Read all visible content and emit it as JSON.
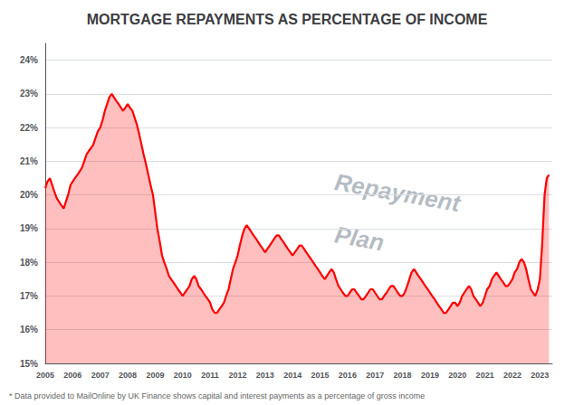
{
  "chart_data": {
    "type": "line",
    "title": "MORTGAGE REPAYMENTS AS PERCENTAGE OF INCOME",
    "footnote": "* Data provided to MailOnline by UK Finance shows capital and interest payments as a percentage of gross income",
    "annotations": [
      "Repayment",
      "Plan"
    ],
    "color": "#ff0000",
    "grid": true,
    "xlim": [
      2005,
      2023.45
    ],
    "xticks": [
      2005,
      2006,
      2007,
      2008,
      2009,
      2010,
      2011,
      2012,
      2013,
      2014,
      2015,
      2016,
      2017,
      2018,
      2019,
      2020,
      2021,
      2022,
      2023
    ],
    "ylim": [
      15,
      24.5
    ],
    "yticks": [
      {
        "value": 15,
        "label": "15%"
      },
      {
        "value": 16,
        "label": "16%"
      },
      {
        "value": 17,
        "label": "17%"
      },
      {
        "value": 18,
        "label": "18%"
      },
      {
        "value": 19,
        "label": "19%"
      },
      {
        "value": 20,
        "label": "20%"
      },
      {
        "value": 21,
        "label": "21%"
      },
      {
        "value": 22,
        "label": "22%"
      },
      {
        "value": 23,
        "label": "23%"
      },
      {
        "value": 24,
        "label": "24%"
      }
    ],
    "x": [
      2005.0,
      2005.08,
      2005.17,
      2005.25,
      2005.33,
      2005.42,
      2005.5,
      2005.58,
      2005.67,
      2005.75,
      2005.83,
      2005.92,
      2006.0,
      2006.08,
      2006.17,
      2006.25,
      2006.33,
      2006.42,
      2006.5,
      2006.58,
      2006.67,
      2006.75,
      2006.83,
      2006.92,
      2007.0,
      2007.08,
      2007.17,
      2007.25,
      2007.33,
      2007.42,
      2007.5,
      2007.58,
      2007.67,
      2007.75,
      2007.83,
      2007.92,
      2008.0,
      2008.08,
      2008.17,
      2008.25,
      2008.33,
      2008.42,
      2008.5,
      2008.58,
      2008.67,
      2008.75,
      2008.83,
      2008.92,
      2009.0,
      2009.08,
      2009.17,
      2009.25,
      2009.33,
      2009.42,
      2009.5,
      2009.58,
      2009.67,
      2009.75,
      2009.83,
      2009.92,
      2010.0,
      2010.08,
      2010.17,
      2010.25,
      2010.33,
      2010.42,
      2010.5,
      2010.58,
      2010.67,
      2010.75,
      2010.83,
      2010.92,
      2011.0,
      2011.08,
      2011.17,
      2011.25,
      2011.33,
      2011.42,
      2011.5,
      2011.58,
      2011.67,
      2011.75,
      2011.83,
      2011.92,
      2012.0,
      2012.08,
      2012.17,
      2012.25,
      2012.33,
      2012.42,
      2012.5,
      2012.58,
      2012.67,
      2012.75,
      2012.83,
      2012.92,
      2013.0,
      2013.08,
      2013.17,
      2013.25,
      2013.33,
      2013.42,
      2013.5,
      2013.58,
      2013.67,
      2013.75,
      2013.83,
      2013.92,
      2014.0,
      2014.08,
      2014.17,
      2014.25,
      2014.33,
      2014.42,
      2014.5,
      2014.58,
      2014.67,
      2014.75,
      2014.83,
      2014.92,
      2015.0,
      2015.08,
      2015.17,
      2015.25,
      2015.33,
      2015.42,
      2015.5,
      2015.58,
      2015.67,
      2015.75,
      2015.83,
      2015.92,
      2016.0,
      2016.08,
      2016.17,
      2016.25,
      2016.33,
      2016.42,
      2016.5,
      2016.58,
      2016.67,
      2016.75,
      2016.83,
      2016.92,
      2017.0,
      2017.08,
      2017.17,
      2017.25,
      2017.33,
      2017.42,
      2017.5,
      2017.58,
      2017.67,
      2017.75,
      2017.83,
      2017.92,
      2018.0,
      2018.08,
      2018.17,
      2018.25,
      2018.33,
      2018.42,
      2018.5,
      2018.58,
      2018.67,
      2018.75,
      2018.83,
      2018.92,
      2019.0,
      2019.08,
      2019.17,
      2019.25,
      2019.33,
      2019.42,
      2019.5,
      2019.58,
      2019.67,
      2019.75,
      2019.83,
      2019.92,
      2020.0,
      2020.08,
      2020.17,
      2020.25,
      2020.33,
      2020.42,
      2020.5,
      2020.58,
      2020.67,
      2020.75,
      2020.83,
      2020.92,
      2021.0,
      2021.08,
      2021.17,
      2021.25,
      2021.33,
      2021.42,
      2021.5,
      2021.58,
      2021.67,
      2021.75,
      2021.83,
      2021.92,
      2022.0,
      2022.08,
      2022.17,
      2022.25,
      2022.33,
      2022.42,
      2022.5,
      2022.58,
      2022.67,
      2022.75,
      2022.83,
      2022.92,
      2023.0,
      2023.08,
      2023.17,
      2023.25,
      2023.33
    ],
    "values": [
      20.2,
      20.4,
      20.5,
      20.3,
      20.1,
      19.9,
      19.8,
      19.7,
      19.6,
      19.8,
      20.0,
      20.3,
      20.4,
      20.5,
      20.6,
      20.7,
      20.8,
      21.0,
      21.2,
      21.3,
      21.4,
      21.5,
      21.7,
      21.9,
      22.0,
      22.2,
      22.5,
      22.7,
      22.9,
      23.0,
      22.9,
      22.8,
      22.7,
      22.6,
      22.5,
      22.6,
      22.7,
      22.6,
      22.5,
      22.3,
      22.1,
      21.8,
      21.5,
      21.2,
      20.9,
      20.6,
      20.3,
      20.0,
      19.5,
      19.0,
      18.6,
      18.2,
      18.0,
      17.8,
      17.6,
      17.5,
      17.4,
      17.3,
      17.2,
      17.1,
      17.0,
      17.1,
      17.2,
      17.3,
      17.5,
      17.6,
      17.5,
      17.3,
      17.2,
      17.1,
      17.0,
      16.9,
      16.8,
      16.6,
      16.5,
      16.5,
      16.6,
      16.7,
      16.8,
      17.0,
      17.2,
      17.5,
      17.8,
      18.0,
      18.2,
      18.5,
      18.8,
      19.0,
      19.1,
      19.0,
      18.9,
      18.8,
      18.7,
      18.6,
      18.5,
      18.4,
      18.3,
      18.4,
      18.5,
      18.6,
      18.7,
      18.8,
      18.8,
      18.7,
      18.6,
      18.5,
      18.4,
      18.3,
      18.2,
      18.3,
      18.4,
      18.5,
      18.5,
      18.4,
      18.3,
      18.2,
      18.1,
      18.0,
      17.9,
      17.8,
      17.7,
      17.6,
      17.5,
      17.6,
      17.7,
      17.8,
      17.7,
      17.5,
      17.3,
      17.2,
      17.1,
      17.0,
      17.0,
      17.1,
      17.2,
      17.2,
      17.1,
      17.0,
      16.9,
      16.9,
      17.0,
      17.1,
      17.2,
      17.2,
      17.1,
      17.0,
      16.9,
      16.9,
      17.0,
      17.1,
      17.2,
      17.3,
      17.3,
      17.2,
      17.1,
      17.0,
      17.0,
      17.1,
      17.3,
      17.5,
      17.7,
      17.8,
      17.7,
      17.6,
      17.5,
      17.4,
      17.3,
      17.2,
      17.1,
      17.0,
      16.9,
      16.8,
      16.7,
      16.6,
      16.5,
      16.5,
      16.6,
      16.7,
      16.8,
      16.8,
      16.7,
      16.8,
      17.0,
      17.1,
      17.2,
      17.3,
      17.2,
      17.0,
      16.9,
      16.8,
      16.7,
      16.8,
      17.0,
      17.2,
      17.3,
      17.5,
      17.6,
      17.7,
      17.6,
      17.5,
      17.4,
      17.3,
      17.3,
      17.4,
      17.5,
      17.7,
      17.8,
      18.0,
      18.1,
      18.0,
      17.8,
      17.5,
      17.2,
      17.1,
      17.0,
      17.2,
      17.5,
      18.5,
      20.0,
      20.5,
      20.6
    ]
  }
}
